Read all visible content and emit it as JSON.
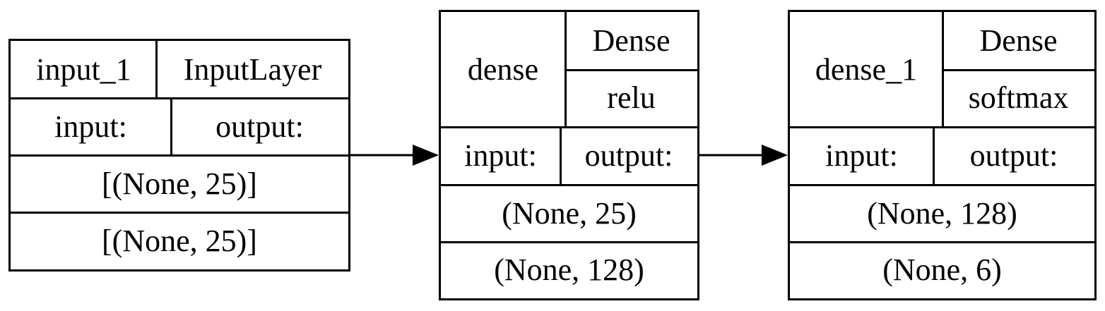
{
  "diagram": {
    "nodes": [
      {
        "name": "input_1",
        "type": "InputLayer",
        "input_label": "input:",
        "output_label": "output:",
        "input_shape": "[(None, 25)]",
        "output_shape": "[(None, 25)]"
      },
      {
        "name": "dense",
        "type": "Dense",
        "activation": "relu",
        "input_label": "input:",
        "output_label": "output:",
        "input_shape": "(None, 25)",
        "output_shape": "(None, 128)"
      },
      {
        "name": "dense_1",
        "type": "Dense",
        "activation": "softmax",
        "input_label": "input:",
        "output_label": "output:",
        "input_shape": "(None, 128)",
        "output_shape": "(None, 6)"
      }
    ],
    "edges": [
      {
        "from": "input_1",
        "to": "dense"
      },
      {
        "from": "dense",
        "to": "dense_1"
      }
    ],
    "colors": {
      "stroke": "#000000",
      "fill": "#ffffff"
    }
  }
}
